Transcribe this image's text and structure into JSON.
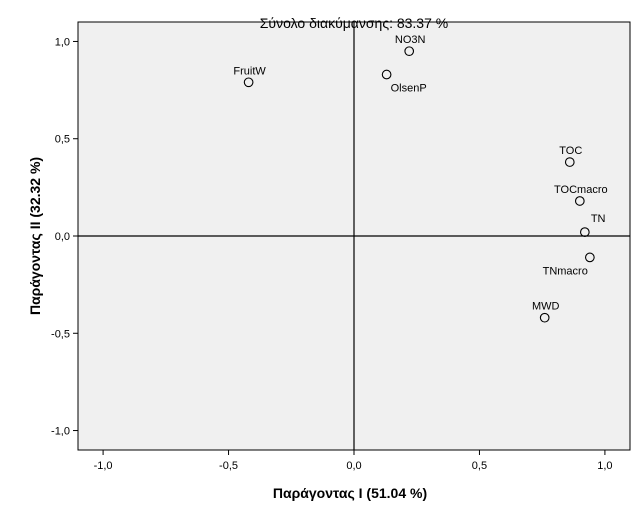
{
  "chart_data": {
    "type": "scatter",
    "title": "Σύνολο διακύμανσης: 83.37 %",
    "xlabel": "Παράγοντας Ι (51.04 %)",
    "ylabel": "Παράγοντας ΙΙ (32.32 %)",
    "xlim": [
      -1.1,
      1.1
    ],
    "ylim": [
      -1.1,
      1.1
    ],
    "xticks": [
      -1.0,
      -0.5,
      0.0,
      0.5,
      1.0
    ],
    "yticks": [
      -1.0,
      -0.5,
      0.0,
      0.5,
      1.0
    ],
    "xtick_labels": [
      "-1,0",
      "-0,5",
      "0,0",
      "0,5",
      "1,0"
    ],
    "ytick_labels": [
      "-1,0",
      "-0,5",
      "0,0",
      "0,5",
      "1,0"
    ],
    "grid": false,
    "reference_lines": {
      "x": 0,
      "y": 0
    },
    "background_color": "#f0f0f0",
    "marker": "open-circle",
    "points": [
      {
        "label": "FruitW",
        "x": -0.42,
        "y": 0.79,
        "label_pos": "above"
      },
      {
        "label": "NO3N",
        "x": 0.22,
        "y": 0.95,
        "label_pos": "above"
      },
      {
        "label": "OlsenP",
        "x": 0.13,
        "y": 0.83,
        "label_pos": "below"
      },
      {
        "label": "TOC",
        "x": 0.86,
        "y": 0.38,
        "label_pos": "above"
      },
      {
        "label": "TOCmacro",
        "x": 0.9,
        "y": 0.18,
        "label_pos": "above"
      },
      {
        "label": "TN",
        "x": 0.92,
        "y": 0.02,
        "label_pos": "above-right"
      },
      {
        "label": "TNmacro",
        "x": 0.94,
        "y": -0.11,
        "label_pos": "below-left"
      },
      {
        "label": "MWD",
        "x": 0.76,
        "y": -0.42,
        "label_pos": "above"
      }
    ]
  }
}
